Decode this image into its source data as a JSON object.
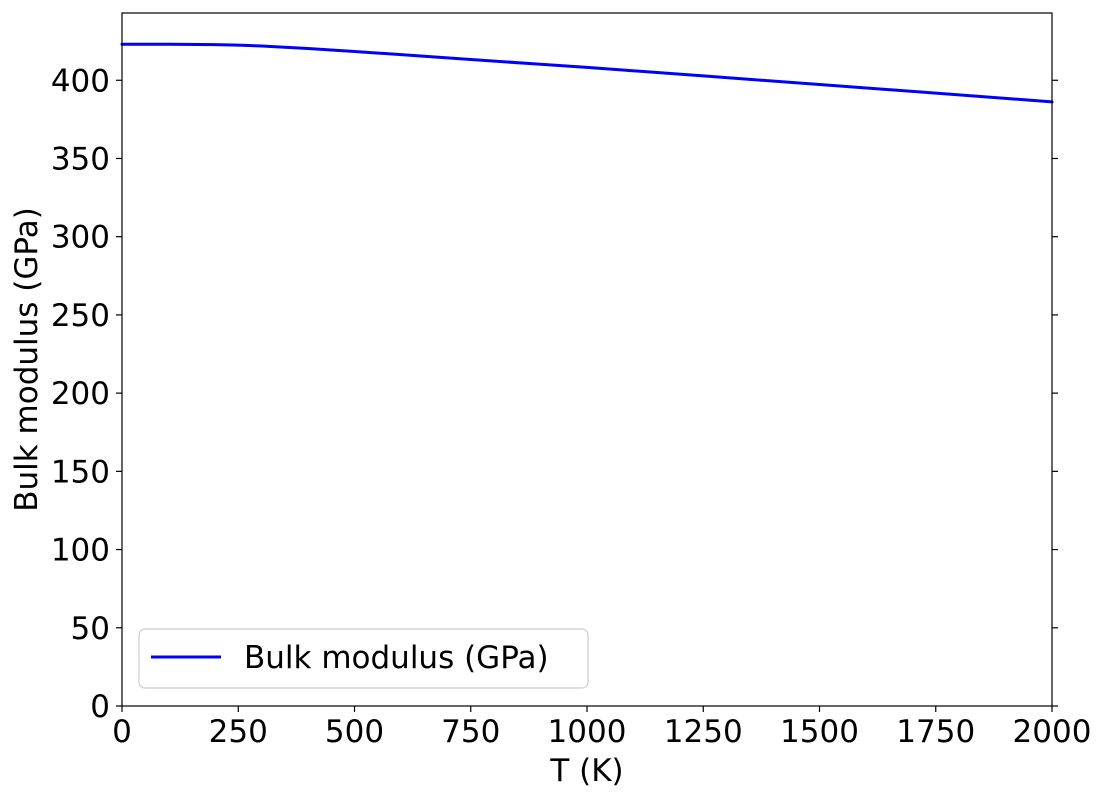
{
  "chart_data": {
    "type": "line",
    "title": "",
    "xlabel": "T (K)",
    "ylabel": "Bulk modulus (GPa)",
    "xlim": [
      0,
      2000
    ],
    "ylim": [
      0,
      443
    ],
    "xticks": [
      0,
      250,
      500,
      750,
      1000,
      1250,
      1500,
      1750,
      2000
    ],
    "yticks": [
      0,
      50,
      100,
      150,
      200,
      250,
      300,
      350,
      400
    ],
    "grid": false,
    "legend_position": "lower-left",
    "series": [
      {
        "name": "Bulk modulus (GPa)",
        "color": "#0000ff",
        "x": [
          0,
          100,
          200,
          250,
          300,
          400,
          500,
          600,
          750,
          900,
          1000,
          1250,
          1500,
          1750,
          2000
        ],
        "y": [
          423,
          423,
          422.8,
          422.5,
          421.9,
          420.3,
          418.4,
          416.4,
          413.3,
          410.2,
          408.2,
          402.8,
          397.3,
          391.8,
          386.2
        ]
      }
    ]
  }
}
